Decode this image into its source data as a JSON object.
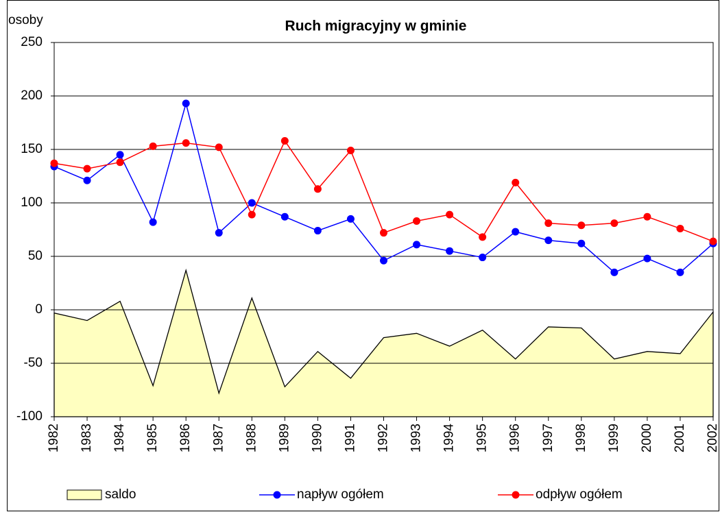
{
  "chart_data": {
    "type": "line",
    "title": "Ruch migracyjny w gminie",
    "y_label": "osoby",
    "categories": [
      "1982",
      "1983",
      "1984",
      "1985",
      "1986",
      "1987",
      "1988",
      "1989",
      "1990",
      "1991",
      "1992",
      "1993",
      "1994",
      "1995",
      "1996",
      "1997",
      "1998",
      "1999",
      "2000",
      "2001",
      "2002"
    ],
    "series": [
      {
        "name": "saldo",
        "type": "area",
        "color": "#ffffc0",
        "values": [
          -3,
          -10,
          8,
          -71,
          37,
          -78,
          11,
          -72,
          -39,
          -64,
          -26,
          -22,
          -34,
          -19,
          -46,
          -16,
          -17,
          -46,
          -39,
          -41,
          -2
        ]
      },
      {
        "name": "napływ ogółem",
        "type": "line",
        "color": "#0000ff",
        "values": [
          134,
          121,
          145,
          82,
          193,
          72,
          100,
          87,
          74,
          85,
          46,
          61,
          55,
          49,
          73,
          65,
          62,
          35,
          48,
          35,
          62
        ]
      },
      {
        "name": "odpływ ogółem",
        "type": "line",
        "color": "#ff0000",
        "values": [
          137,
          132,
          138,
          153,
          156,
          152,
          89,
          158,
          113,
          149,
          72,
          83,
          89,
          68,
          119,
          81,
          79,
          81,
          87,
          76,
          64
        ]
      }
    ],
    "ylim": [
      -100,
      250
    ],
    "yticks": [
      -100,
      -50,
      0,
      50,
      100,
      150,
      200,
      250
    ],
    "grid": true,
    "legend": "bottom"
  }
}
